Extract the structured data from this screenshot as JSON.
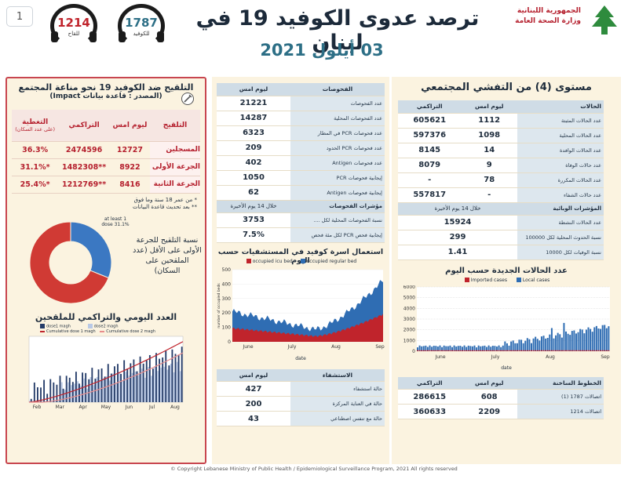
{
  "page_number": "1",
  "hotlines": [
    {
      "number": "1214",
      "label": "للقاح"
    },
    {
      "number": "1787",
      "label": "للكوفيد"
    }
  ],
  "title": "ترصد عدوى الكوفيد 19 في لبنان",
  "date": "03 أيلول 2021",
  "ministry": {
    "line1": "الجمهورية اللبنانية",
    "line2": "وزارة الصحة العامة"
  },
  "community": {
    "title": "مستوى (4) من التفشي المجتمعي",
    "headers": {
      "label": "الحالات",
      "yesterday": "ليوم امس",
      "cumulative": "التراكمي"
    },
    "rows": [
      {
        "label": "عدد الحالات المثبتة",
        "yesterday": "1112",
        "cumulative": "605621"
      },
      {
        "label": "عدد الحالات المحلية",
        "yesterday": "1098",
        "cumulative": "597376"
      },
      {
        "label": "عدد الحالات الوافدة",
        "yesterday": "14",
        "cumulative": "8145"
      },
      {
        "label": "عدد حالات الوفاة",
        "yesterday": "9",
        "cumulative": "8079"
      },
      {
        "label": "عدد الحالات المكررة",
        "yesterday": "78",
        "cumulative": "-"
      },
      {
        "label": "عدد حالات الشفاء",
        "yesterday": "-",
        "cumulative": "557817"
      }
    ],
    "indicators_header": "المؤشرات الوبائية",
    "indicators_sub": "خلال 14 يوم الأخيرة",
    "indicators": [
      {
        "label": "عدد الحالات النشطة",
        "value": "15924"
      },
      {
        "label": "نسبة الحدوث المحلية لكل 100000",
        "value": "299"
      },
      {
        "label": "نسبة الوفيات لكل 10000",
        "value": "1.41"
      }
    ]
  },
  "tests": {
    "headers": {
      "label": "الفحوصات",
      "yesterday": "ليوم امس"
    },
    "rows": [
      {
        "label": "عدد الفحوصات",
        "value": "21221"
      },
      {
        "label": "عدد الفحوصات المحلية",
        "value": "14287"
      },
      {
        "label": "عدد فحوصات PCR في المطار",
        "value": "6323"
      },
      {
        "label": "عدد فحوصات PCR الحدود",
        "value": "209"
      },
      {
        "label": "عدد فحوصات Antigen",
        "value": "402"
      },
      {
        "label": "إيجابية فحوصات PCR",
        "value": "1050"
      },
      {
        "label": "إيجابية فحوصات Antigen",
        "value": "62"
      }
    ],
    "indicators_header": "مؤشرات الفحوصات",
    "indicators_sub": "خلال 14 يوم الأخيرة",
    "indicators": [
      {
        "label": "نسبة الفحوصات المحلية لكل ....",
        "value": "3753"
      },
      {
        "label": "إيجابية فحص PCR لكل مئة فحص",
        "value": "7.5%"
      }
    ]
  },
  "hospital_chart": {
    "title": "استعمال اسرة كوفيد في المستشفيات حسب اليوم",
    "legend": [
      {
        "name": "occupied icu bed",
        "color": "#c0242c"
      },
      {
        "name": "occupied regular bed",
        "color": "#2f6db3"
      }
    ],
    "xlabel": "date",
    "ylabel": "number of occupied beds",
    "x_ticks": [
      "June",
      "July",
      "Aug",
      "Sep"
    ],
    "y_ticks": [
      "0",
      "100",
      "200",
      "300",
      "400",
      "500"
    ]
  },
  "hospitalization": {
    "headers": {
      "label": "الاستشفاء",
      "yesterday": "ليوم امس"
    },
    "rows": [
      {
        "label": "حالة استشفاء",
        "value": "427"
      },
      {
        "label": "حالة في العناية المركزة",
        "value": "200"
      },
      {
        "label": "حالة مع تنفس اصطناعي",
        "value": "43"
      }
    ]
  },
  "cases_chart": {
    "title": "عدد الحالات الجديدة حسب اليوم",
    "legend": [
      {
        "name": "Imported cases",
        "color": "#c0242c"
      },
      {
        "name": "Local cases",
        "color": "#2f6db3"
      }
    ],
    "xlabel": "date",
    "x_ticks": [
      "June",
      "July",
      "Aug",
      "Sep"
    ],
    "y_ticks": [
      "0",
      "1000",
      "2000",
      "3000",
      "4000",
      "5000",
      "6000"
    ]
  },
  "hotline_table": {
    "headers": {
      "label": "الخطوط الساخنة",
      "yesterday": "ليوم امس",
      "cumulative": "التراكمي"
    },
    "rows": [
      {
        "label": "اتصالات 1787 (1)",
        "yesterday": "608",
        "cumulative": "286615"
      },
      {
        "label": "اتصالات 1214",
        "yesterday": "2209",
        "cumulative": "360633"
      }
    ]
  },
  "vaccination": {
    "title": "التلقيح ضد الكوفيد 19 نحو مناعة المجتمع",
    "source": "(المصدر : قاعدة بيانات Impact)",
    "headers": {
      "label": "التلقيح",
      "yesterday": "ليوم امس",
      "cumulative": "التراكمي",
      "coverage": "التغطية",
      "coverage_sub": "(على عدد السكان)"
    },
    "rows": [
      {
        "label": "المسجلين",
        "yesterday": "12727",
        "cumulative": "2474596",
        "coverage": "36.3%"
      },
      {
        "label": "الجرعة الأولى",
        "yesterday": "8922",
        "cumulative": "**1482308",
        "coverage": "*31.1%"
      },
      {
        "label": "الجرعة الثانية",
        "yesterday": "8416",
        "cumulative": "**1212769",
        "coverage": "*25.4%"
      }
    ],
    "note1": "* من عمر 18 سنة وما فوق",
    "note2": "** بعد تحديث قاعدة البيانات",
    "donut_label": "at least 1 dose 31.1%",
    "donut_caption": "نسبة التلقيح للجرعة الأولى على الأقل (عدد الملقحين على السكان)"
  },
  "vaccine_chart": {
    "title": "العدد اليومي والتراكمي للملقحين",
    "legend": [
      "dose1 magh",
      "dose2 magh",
      "Cumulative dose 1 magh",
      "Cumulative dose 2 magh"
    ],
    "x_ticks": [
      "Feb",
      "Mar",
      "Apr",
      "May",
      "Jun",
      "Jul",
      "Aug"
    ]
  },
  "chart_data": [
    {
      "type": "pie",
      "categories": [
        "at least 1 dose",
        "remaining"
      ],
      "values": [
        31.1,
        68.9
      ],
      "colors": [
        "#3b78c2",
        "#d03a34"
      ]
    }
  ],
  "footer": "© Copyright Lebanese Ministry of Public Health / Epidemiological Surveillance Program, 2021 All rights reserved"
}
